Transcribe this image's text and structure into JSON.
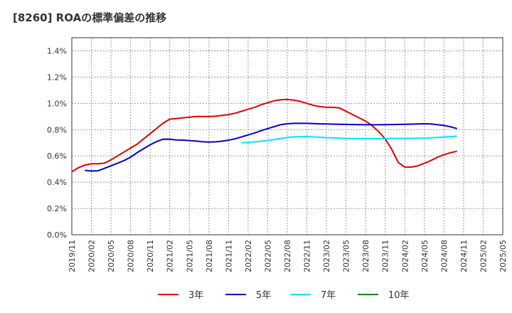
{
  "chart_data": {
    "type": "line",
    "title": "[8260]  ROAの標準偏差の推移",
    "ylim": [
      0,
      1.5
    ],
    "y_ticks": [
      "0.0%",
      "0.2%",
      "0.4%",
      "0.6%",
      "0.8%",
      "1.0%",
      "1.2%",
      "1.4%"
    ],
    "x_ticks": [
      "2019/11",
      "2020/02",
      "2020/05",
      "2020/08",
      "2020/11",
      "2021/02",
      "2021/05",
      "2021/08",
      "2021/11",
      "2022/02",
      "2022/05",
      "2022/08",
      "2022/11",
      "2023/02",
      "2023/05",
      "2023/08",
      "2023/11",
      "2024/02",
      "2024/05",
      "2024/08",
      "2024/11",
      "2025/02",
      "2025/05"
    ],
    "grid": true,
    "legend_position": "bottom",
    "series": [
      {
        "name": "3年",
        "color": "#dd0000",
        "points": [
          [
            "2019/11",
            0.48
          ],
          [
            "2019/12",
            0.51
          ],
          [
            "2020/01",
            0.53
          ],
          [
            "2020/02",
            0.54
          ],
          [
            "2020/03",
            0.54
          ],
          [
            "2020/04",
            0.545
          ],
          [
            "2020/05",
            0.57
          ],
          [
            "2020/06",
            0.6
          ],
          [
            "2020/07",
            0.63
          ],
          [
            "2020/08",
            0.66
          ],
          [
            "2020/09",
            0.69
          ],
          [
            "2020/10",
            0.73
          ],
          [
            "2020/11",
            0.77
          ],
          [
            "2020/12",
            0.81
          ],
          [
            "2021/01",
            0.85
          ],
          [
            "2021/02",
            0.88
          ],
          [
            "2021/03",
            0.885
          ],
          [
            "2021/04",
            0.89
          ],
          [
            "2021/05",
            0.895
          ],
          [
            "2021/06",
            0.9
          ],
          [
            "2021/07",
            0.9
          ],
          [
            "2021/08",
            0.9
          ],
          [
            "2021/09",
            0.902
          ],
          [
            "2021/10",
            0.908
          ],
          [
            "2021/11",
            0.915
          ],
          [
            "2021/12",
            0.925
          ],
          [
            "2022/01",
            0.94
          ],
          [
            "2022/02",
            0.955
          ],
          [
            "2022/03",
            0.97
          ],
          [
            "2022/04",
            0.99
          ],
          [
            "2022/05",
            1.005
          ],
          [
            "2022/06",
            1.02
          ],
          [
            "2022/07",
            1.028
          ],
          [
            "2022/08",
            1.03
          ],
          [
            "2022/09",
            1.025
          ],
          [
            "2022/10",
            1.015
          ],
          [
            "2022/11",
            1.0
          ],
          [
            "2022/12",
            0.985
          ],
          [
            "2023/01",
            0.975
          ],
          [
            "2023/02",
            0.97
          ],
          [
            "2023/03",
            0.97
          ],
          [
            "2023/04",
            0.965
          ],
          [
            "2023/05",
            0.94
          ],
          [
            "2023/06",
            0.915
          ],
          [
            "2023/07",
            0.89
          ],
          [
            "2023/08",
            0.865
          ],
          [
            "2023/09",
            0.83
          ],
          [
            "2023/10",
            0.785
          ],
          [
            "2023/11",
            0.73
          ],
          [
            "2023/12",
            0.65
          ],
          [
            "2024/01",
            0.55
          ],
          [
            "2024/02",
            0.515
          ],
          [
            "2024/03",
            0.515
          ],
          [
            "2024/04",
            0.525
          ],
          [
            "2024/05",
            0.545
          ],
          [
            "2024/06",
            0.565
          ],
          [
            "2024/07",
            0.59
          ],
          [
            "2024/08",
            0.61
          ],
          [
            "2024/09",
            0.625
          ],
          [
            "2024/10",
            0.635
          ]
        ]
      },
      {
        "name": "5年",
        "color": "#0000cc",
        "points": [
          [
            "2020/01",
            0.49
          ],
          [
            "2020/02",
            0.485
          ],
          [
            "2020/03",
            0.487
          ],
          [
            "2020/04",
            0.505
          ],
          [
            "2020/05",
            0.525
          ],
          [
            "2020/06",
            0.545
          ],
          [
            "2020/07",
            0.565
          ],
          [
            "2020/08",
            0.59
          ],
          [
            "2020/09",
            0.625
          ],
          [
            "2020/10",
            0.655
          ],
          [
            "2020/11",
            0.685
          ],
          [
            "2020/12",
            0.71
          ],
          [
            "2021/01",
            0.728
          ],
          [
            "2021/02",
            0.727
          ],
          [
            "2021/03",
            0.722
          ],
          [
            "2021/04",
            0.72
          ],
          [
            "2021/05",
            0.717
          ],
          [
            "2021/06",
            0.713
          ],
          [
            "2021/07",
            0.708
          ],
          [
            "2021/08",
            0.705
          ],
          [
            "2021/09",
            0.707
          ],
          [
            "2021/10",
            0.712
          ],
          [
            "2021/11",
            0.72
          ],
          [
            "2021/12",
            0.73
          ],
          [
            "2022/01",
            0.745
          ],
          [
            "2022/02",
            0.76
          ],
          [
            "2022/03",
            0.775
          ],
          [
            "2022/04",
            0.792
          ],
          [
            "2022/05",
            0.808
          ],
          [
            "2022/06",
            0.823
          ],
          [
            "2022/07",
            0.838
          ],
          [
            "2022/08",
            0.845
          ],
          [
            "2022/09",
            0.848
          ],
          [
            "2022/10",
            0.848
          ],
          [
            "2022/11",
            0.848
          ],
          [
            "2022/12",
            0.846
          ],
          [
            "2023/01",
            0.844
          ],
          [
            "2023/02",
            0.843
          ],
          [
            "2023/03",
            0.842
          ],
          [
            "2023/04",
            0.841
          ],
          [
            "2023/05",
            0.84
          ],
          [
            "2023/06",
            0.839
          ],
          [
            "2023/07",
            0.838
          ],
          [
            "2023/08",
            0.837
          ],
          [
            "2023/09",
            0.837
          ],
          [
            "2023/10",
            0.837
          ],
          [
            "2023/11",
            0.838
          ],
          [
            "2023/12",
            0.839
          ],
          [
            "2024/01",
            0.84
          ],
          [
            "2024/02",
            0.841
          ],
          [
            "2024/03",
            0.842
          ],
          [
            "2024/04",
            0.843
          ],
          [
            "2024/05",
            0.845
          ],
          [
            "2024/06",
            0.843
          ],
          [
            "2024/07",
            0.838
          ],
          [
            "2024/08",
            0.832
          ],
          [
            "2024/09",
            0.822
          ],
          [
            "2024/10",
            0.808
          ]
        ]
      },
      {
        "name": "7年",
        "color": "#00e5ff",
        "points": [
          [
            "2022/01",
            0.7
          ],
          [
            "2022/02",
            0.703
          ],
          [
            "2022/03",
            0.707
          ],
          [
            "2022/04",
            0.712
          ],
          [
            "2022/05",
            0.718
          ],
          [
            "2022/06",
            0.725
          ],
          [
            "2022/07",
            0.733
          ],
          [
            "2022/08",
            0.74
          ],
          [
            "2022/09",
            0.745
          ],
          [
            "2022/10",
            0.747
          ],
          [
            "2022/11",
            0.747
          ],
          [
            "2022/12",
            0.745
          ],
          [
            "2023/01",
            0.742
          ],
          [
            "2023/02",
            0.739
          ],
          [
            "2023/03",
            0.737
          ],
          [
            "2023/04",
            0.735
          ],
          [
            "2023/05",
            0.733
          ],
          [
            "2023/06",
            0.732
          ],
          [
            "2023/07",
            0.731
          ],
          [
            "2023/08",
            0.731
          ],
          [
            "2023/09",
            0.731
          ],
          [
            "2023/10",
            0.731
          ],
          [
            "2023/11",
            0.732
          ],
          [
            "2023/12",
            0.733
          ],
          [
            "2024/01",
            0.733
          ],
          [
            "2024/02",
            0.733
          ],
          [
            "2024/03",
            0.734
          ],
          [
            "2024/04",
            0.735
          ],
          [
            "2024/05",
            0.736
          ],
          [
            "2024/06",
            0.738
          ],
          [
            "2024/07",
            0.741
          ],
          [
            "2024/08",
            0.744
          ],
          [
            "2024/09",
            0.747
          ],
          [
            "2024/10",
            0.75
          ]
        ]
      },
      {
        "name": "10年",
        "color": "#008800",
        "points": []
      }
    ]
  }
}
